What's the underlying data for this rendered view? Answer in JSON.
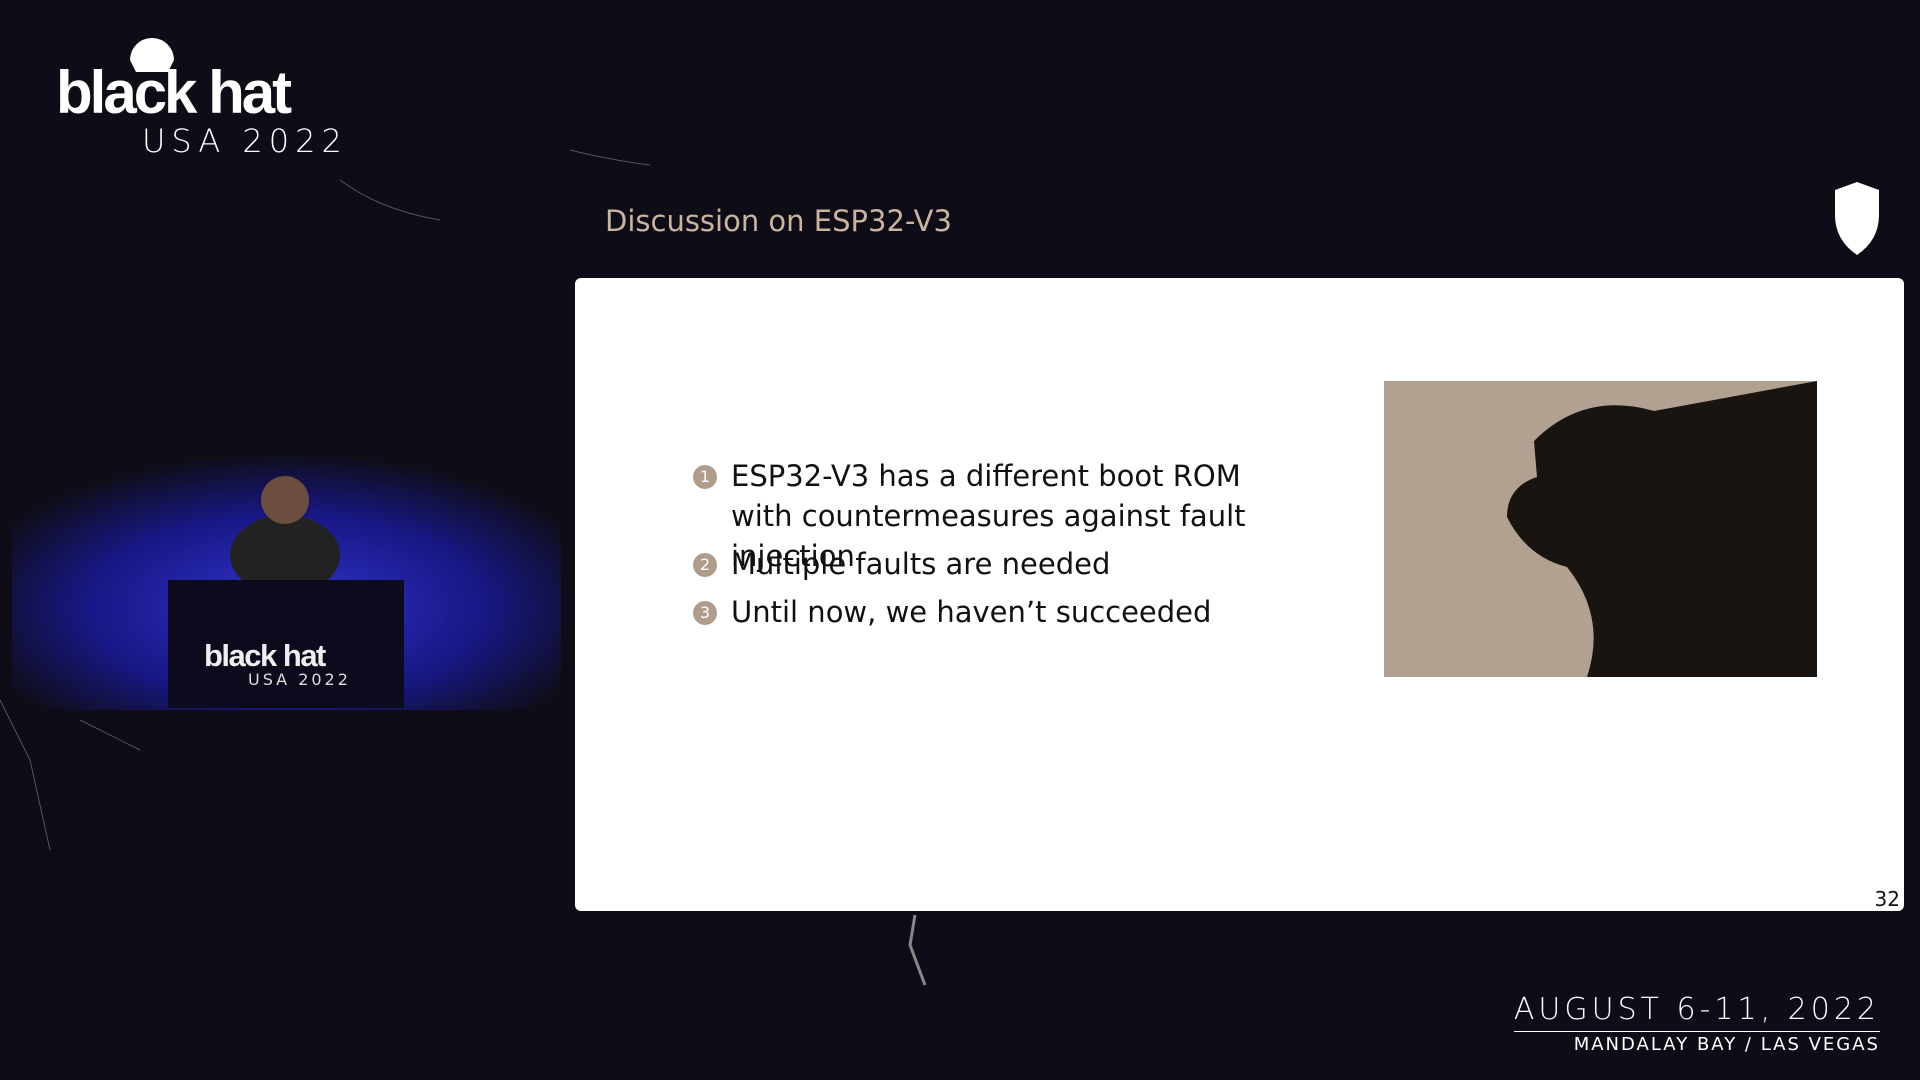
{
  "header": {
    "logo_title": "black hat",
    "logo_subtitle": "USA 2022"
  },
  "video": {
    "podium_logo_title": "black hat",
    "podium_logo_subtitle": "USA 2022"
  },
  "slide": {
    "title": "Discussion on ESP32-V3",
    "bullets": [
      {
        "number": "1",
        "text": "ESP32-V3 has a different boot ROM with countermeasures against fault injection"
      },
      {
        "number": "2",
        "text": "Multiple faults are needed"
      },
      {
        "number": "3",
        "text": "Until now, we haven’t succeeded"
      }
    ],
    "page_number": "32"
  },
  "footer": {
    "dates": "AUGUST 6-11, 2022",
    "venue": "MANDALAY BAY / LAS VEGAS"
  }
}
